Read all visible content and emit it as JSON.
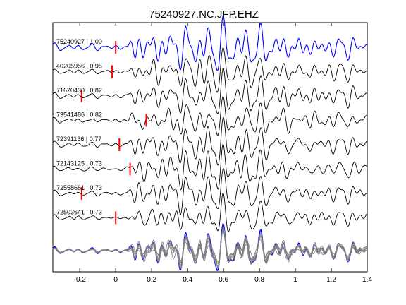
{
  "chart_data": {
    "type": "line",
    "title": "75240927.NC.JFP.EHZ",
    "xlabel": "",
    "ylabel": "",
    "xlim": [
      -0.35,
      1.4
    ],
    "x_ticks": [
      -0.2,
      0,
      0.2,
      0.4,
      0.6,
      0.8,
      1,
      1.2,
      1.4
    ],
    "x_tick_labels": [
      "-0.2",
      "0",
      "0.2",
      "0.4",
      "0.6",
      "0.8",
      "1",
      "1.2",
      "1.4"
    ],
    "grid": false,
    "colors": {
      "template": "#0000ff",
      "trace": "#000000",
      "pick": "#ff0000",
      "stack": "#808080"
    },
    "traces": [
      {
        "label": "75240927 | 1.00",
        "pick_time": 0.0,
        "color": "template",
        "seed": 1
      },
      {
        "label": "40205956 | 0.95",
        "pick_time": -0.02,
        "color": "trace",
        "seed": 2
      },
      {
        "label": "71620430 | 0.82",
        "pick_time": -0.19,
        "color": "trace",
        "seed": 3
      },
      {
        "label": "73541486 | 0.82",
        "pick_time": 0.17,
        "color": "trace",
        "seed": 4
      },
      {
        "label": "72391166 | 0.77",
        "pick_time": 0.02,
        "color": "trace",
        "seed": 5
      },
      {
        "label": "72143125 | 0.73",
        "pick_time": 0.08,
        "color": "trace",
        "seed": 6
      },
      {
        "label": "72558661 | 0.73",
        "pick_time": -0.19,
        "color": "trace",
        "seed": 7
      },
      {
        "label": "72503641 | 0.73",
        "pick_time": 0.0,
        "color": "trace",
        "seed": 8
      }
    ],
    "stack": {
      "description": "overlay of all traces",
      "n_traces": 8
    }
  }
}
